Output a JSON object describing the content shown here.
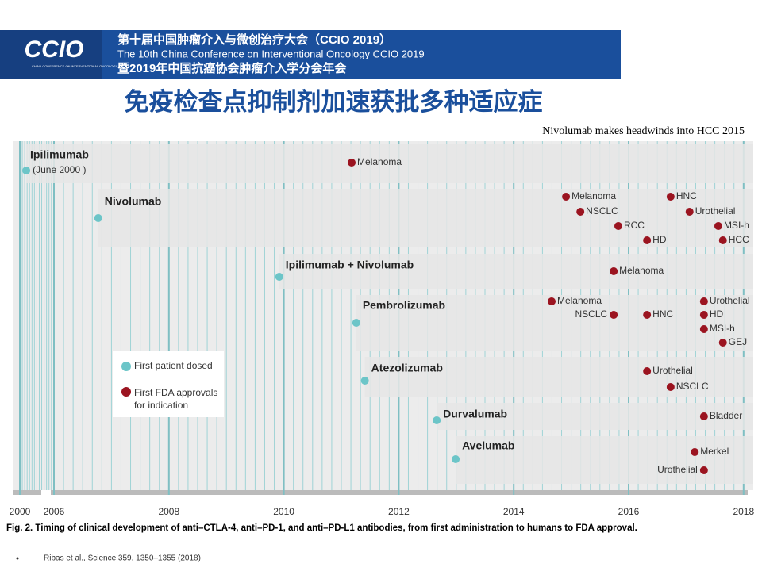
{
  "header": {
    "logo": "CCIO",
    "logo_sub": "CHINA CONFERENCE ON INTERVENTIONAL ONCOLOGY",
    "line1": "第十届中国肿瘤介入与微创治疗大会（CCIO 2019）",
    "line2": "The 10th China Conference on Interventional Oncology CCIO 2019",
    "line3": "暨2019年中国抗癌协会肿瘤介入学分会年会"
  },
  "slide_title": "免疫检查点抑制剂加速获批多种适应症",
  "subtitle": "Nivolumab makes headwinds into HCC 2015",
  "chart_data": {
    "type": "timeline",
    "xticks": [
      2000,
      2006,
      2008,
      2010,
      2012,
      2014,
      2016,
      2018
    ],
    "xlim": [
      2000,
      2018.1
    ],
    "caption": "Fig. 2. Timing of clinical development of anti–CTLA-4, anti–PD-1, and anti–PD-L1 antibodies, from first administration to humans to FDA approval.",
    "legend": {
      "dose": "First patient dosed",
      "approval": "First FDA approvals for indication",
      "dose_color": "#6cc5c8",
      "approval_color": "#9b1420"
    },
    "drugs": [
      {
        "name": "Ipilimumab",
        "first_dose": 2000.45,
        "dose_label": "(June 2000 )",
        "events": [
          {
            "label": "Melanoma",
            "date": 2011.18
          }
        ]
      },
      {
        "name": "Nivolumab",
        "first_dose": 2006.77,
        "events": [
          {
            "label": "Melanoma",
            "date": 2014.91
          },
          {
            "label": "NSCLC",
            "date": 2015.16
          },
          {
            "label": "RCC",
            "date": 2015.82
          },
          {
            "label": "HD",
            "date": 2016.32
          },
          {
            "label": "HNC",
            "date": 2016.73
          },
          {
            "label": "Urothelial",
            "date": 2017.06
          },
          {
            "label": "MSI-h",
            "date": 2017.56
          },
          {
            "label": "HCC",
            "date": 2017.64
          }
        ]
      },
      {
        "name": "Ipilimumab + Nivolumab",
        "first_dose": 2009.92,
        "events": [
          {
            "label": "Melanoma",
            "date": 2015.74
          }
        ]
      },
      {
        "name": "Pembrolizumab",
        "first_dose": 2011.26,
        "events": [
          {
            "label": "Melanoma",
            "date": 2014.66
          },
          {
            "label": "NSCLC",
            "date": 2015.74
          },
          {
            "label": "HNC",
            "date": 2016.32
          },
          {
            "label": "Urothelial",
            "date": 2017.31
          },
          {
            "label": "HD",
            "date": 2017.31
          },
          {
            "label": "MSI-h",
            "date": 2017.31
          },
          {
            "label": "GEJ",
            "date": 2017.64
          }
        ]
      },
      {
        "name": "Atezolizumab",
        "first_dose": 2011.41,
        "events": [
          {
            "label": "Urothelial",
            "date": 2016.32
          },
          {
            "label": "NSCLC",
            "date": 2016.73
          }
        ]
      },
      {
        "name": "Durvalumab",
        "first_dose": 2012.66,
        "events": [
          {
            "label": "Bladder",
            "date": 2017.31
          }
        ]
      },
      {
        "name": "Avelumab",
        "first_dose": 2012.99,
        "events": [
          {
            "label": "Merkel",
            "date": 2017.15
          },
          {
            "label": "Urothelial",
            "date": 2017.31
          }
        ]
      }
    ]
  },
  "reference": "Ribas et al., Science 359, 1350–1355 (2018)"
}
